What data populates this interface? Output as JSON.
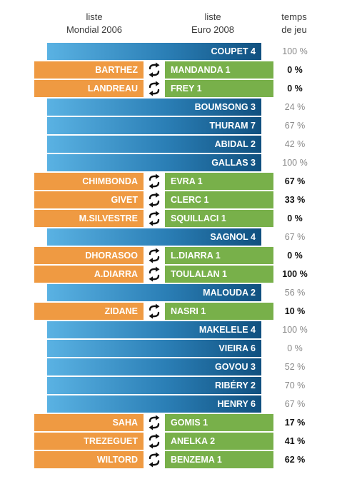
{
  "header": {
    "col_2006_line1": "liste",
    "col_2006_line2": "Mondial 2006",
    "col_2008_line1": "liste",
    "col_2008_line2": "Euro 2008",
    "temps_line1": "temps",
    "temps_line2": "de jeu"
  },
  "colors": {
    "kept": "#2b7fb6",
    "out_2006": "#ef9a42",
    "in_2008": "#78b04a",
    "swap_icon": "#111111"
  },
  "swap_icon": "swap-arrows-icon",
  "rows": [
    {
      "type": "kept",
      "player": "COUPET 4",
      "temps": "100 %"
    },
    {
      "type": "swap",
      "out": "BARTHEZ",
      "in": "MANDANDA 1",
      "temps": "0 %"
    },
    {
      "type": "swap",
      "out": "LANDREAU",
      "in": "FREY 1",
      "temps": "0 %"
    },
    {
      "type": "kept",
      "player": "BOUMSONG 3",
      "temps": "24 %"
    },
    {
      "type": "kept",
      "player": "THURAM 7",
      "temps": "67 %"
    },
    {
      "type": "kept",
      "player": "ABIDAL 2",
      "temps": "42 %"
    },
    {
      "type": "kept",
      "player": "GALLAS 3",
      "temps": "100 %"
    },
    {
      "type": "swap",
      "out": "CHIMBONDA",
      "in": "EVRA 1",
      "temps": "67 %"
    },
    {
      "type": "swap",
      "out": "GIVET",
      "in": "CLERC 1",
      "temps": "33 %"
    },
    {
      "type": "swap",
      "out": "M.SILVESTRE",
      "in": "SQUILLACI 1",
      "temps": "0 %"
    },
    {
      "type": "kept",
      "player": "SAGNOL 4",
      "temps": "67 %"
    },
    {
      "type": "swap",
      "out": "DHORASOO",
      "in": "L.DIARRA 1",
      "temps": "0 %"
    },
    {
      "type": "swap",
      "out": "A.DIARRA",
      "in": "TOULALAN 1",
      "temps": "100 %"
    },
    {
      "type": "kept",
      "player": "MALOUDA 2",
      "temps": "56 %"
    },
    {
      "type": "swap",
      "out": "ZIDANE",
      "in": "NASRI 1",
      "temps": "10 %"
    },
    {
      "type": "kept",
      "player": "MAKELELE 4",
      "temps": "100 %"
    },
    {
      "type": "kept",
      "player": "VIEIRA 6",
      "temps": "0 %"
    },
    {
      "type": "kept",
      "player": "GOVOU 3",
      "temps": "52 %"
    },
    {
      "type": "kept",
      "player": "RIBÉRY 2",
      "temps": "70 %"
    },
    {
      "type": "kept",
      "player": "HENRY 6",
      "temps": "67 %"
    },
    {
      "type": "swap",
      "out": "SAHA",
      "in": "GOMIS 1",
      "temps": "17 %"
    },
    {
      "type": "swap",
      "out": "TREZEGUET",
      "in": "ANELKA 2",
      "temps": "41 %"
    },
    {
      "type": "swap",
      "out": "WILTORD",
      "in": "BENZEMA 1",
      "temps": "62 %"
    }
  ]
}
